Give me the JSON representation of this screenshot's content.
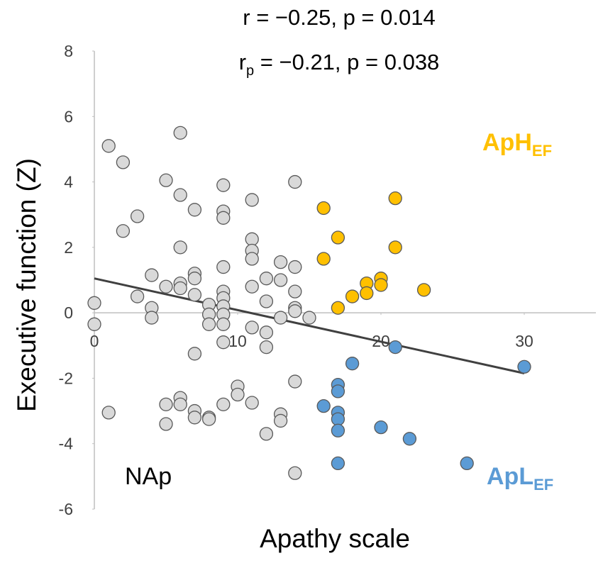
{
  "chart_data": {
    "type": "scatter",
    "stats": [
      {
        "text": "r = −0.25, p = 0.014"
      },
      {
        "text": "r",
        "sub": "p",
        "rest": " = −0.21, p = 0.038"
      }
    ],
    "xlabel": "Apathy scale",
    "ylabel": "Executive function (Z)",
    "xlim": [
      0,
      35
    ],
    "ylim": [
      -6,
      8
    ],
    "xticks": [
      0,
      10,
      20,
      30
    ],
    "yticks": [
      -6,
      -4,
      -2,
      0,
      2,
      4,
      6,
      8
    ],
    "grid": false,
    "series": [
      {
        "name": "NAp",
        "color": "#d9d9d9",
        "label_color": "#000000",
        "x": [
          0,
          0,
          1,
          1,
          2,
          2,
          3,
          3,
          4,
          4,
          4,
          5,
          5,
          5,
          5,
          6,
          6,
          6,
          6,
          6,
          6,
          6,
          7,
          7,
          7,
          7,
          7,
          7,
          7,
          8,
          8,
          8,
          8,
          8,
          9,
          9,
          9,
          9,
          9,
          9,
          9,
          9,
          9,
          9,
          9,
          10,
          10,
          11,
          11,
          11,
          11,
          11,
          11,
          11,
          12,
          12,
          12,
          12,
          12,
          13,
          13,
          13,
          13,
          13,
          14,
          14,
          14,
          14,
          14,
          14,
          14,
          15
        ],
        "values": [
          0.3,
          -0.35,
          5.1,
          -3.05,
          4.6,
          2.5,
          2.95,
          0.5,
          1.15,
          0.15,
          -0.15,
          4.05,
          0.8,
          -2.8,
          -3.4,
          5.5,
          3.6,
          2.0,
          0.9,
          0.75,
          -2.6,
          -2.8,
          3.15,
          1.2,
          1.05,
          0.55,
          -1.25,
          -3.0,
          -3.2,
          0.25,
          -0.05,
          -0.35,
          -3.2,
          -3.25,
          3.9,
          3.1,
          2.9,
          1.4,
          0.65,
          0.45,
          0.2,
          -0.05,
          -0.35,
          -0.9,
          -2.8,
          -2.25,
          -2.5,
          3.45,
          2.25,
          1.9,
          1.65,
          0.8,
          -0.45,
          -2.75,
          1.05,
          0.35,
          -0.6,
          -1.05,
          -3.7,
          1.55,
          1.0,
          -0.15,
          -3.1,
          -3.3,
          4.0,
          1.4,
          0.65,
          0.15,
          0.05,
          -2.1,
          -4.9,
          -0.15
        ]
      },
      {
        "name": "ApH",
        "name_sub": "EF",
        "color": "#ffc000",
        "label_color": "#ffc000",
        "x": [
          16,
          16,
          17,
          17,
          18,
          19,
          19,
          20,
          20,
          21,
          21,
          23
        ],
        "values": [
          3.2,
          1.65,
          2.3,
          0.15,
          0.5,
          0.9,
          0.6,
          1.05,
          0.85,
          3.5,
          2.0,
          0.7
        ]
      },
      {
        "name": "ApL",
        "name_sub": "EF",
        "color": "#5b9bd5",
        "label_color": "#5b9bd5",
        "x": [
          16,
          17,
          17,
          17,
          17,
          17,
          17,
          18,
          20,
          21,
          22,
          26,
          30
        ],
        "values": [
          -2.85,
          -2.2,
          -2.4,
          -3.05,
          -3.25,
          -3.6,
          -4.6,
          -1.55,
          -3.5,
          -1.05,
          -3.85,
          -4.6,
          -1.65
        ]
      }
    ],
    "trend_line": {
      "color": "#404040",
      "x": [
        0,
        30
      ],
      "values": [
        1.05,
        -1.85
      ]
    }
  }
}
